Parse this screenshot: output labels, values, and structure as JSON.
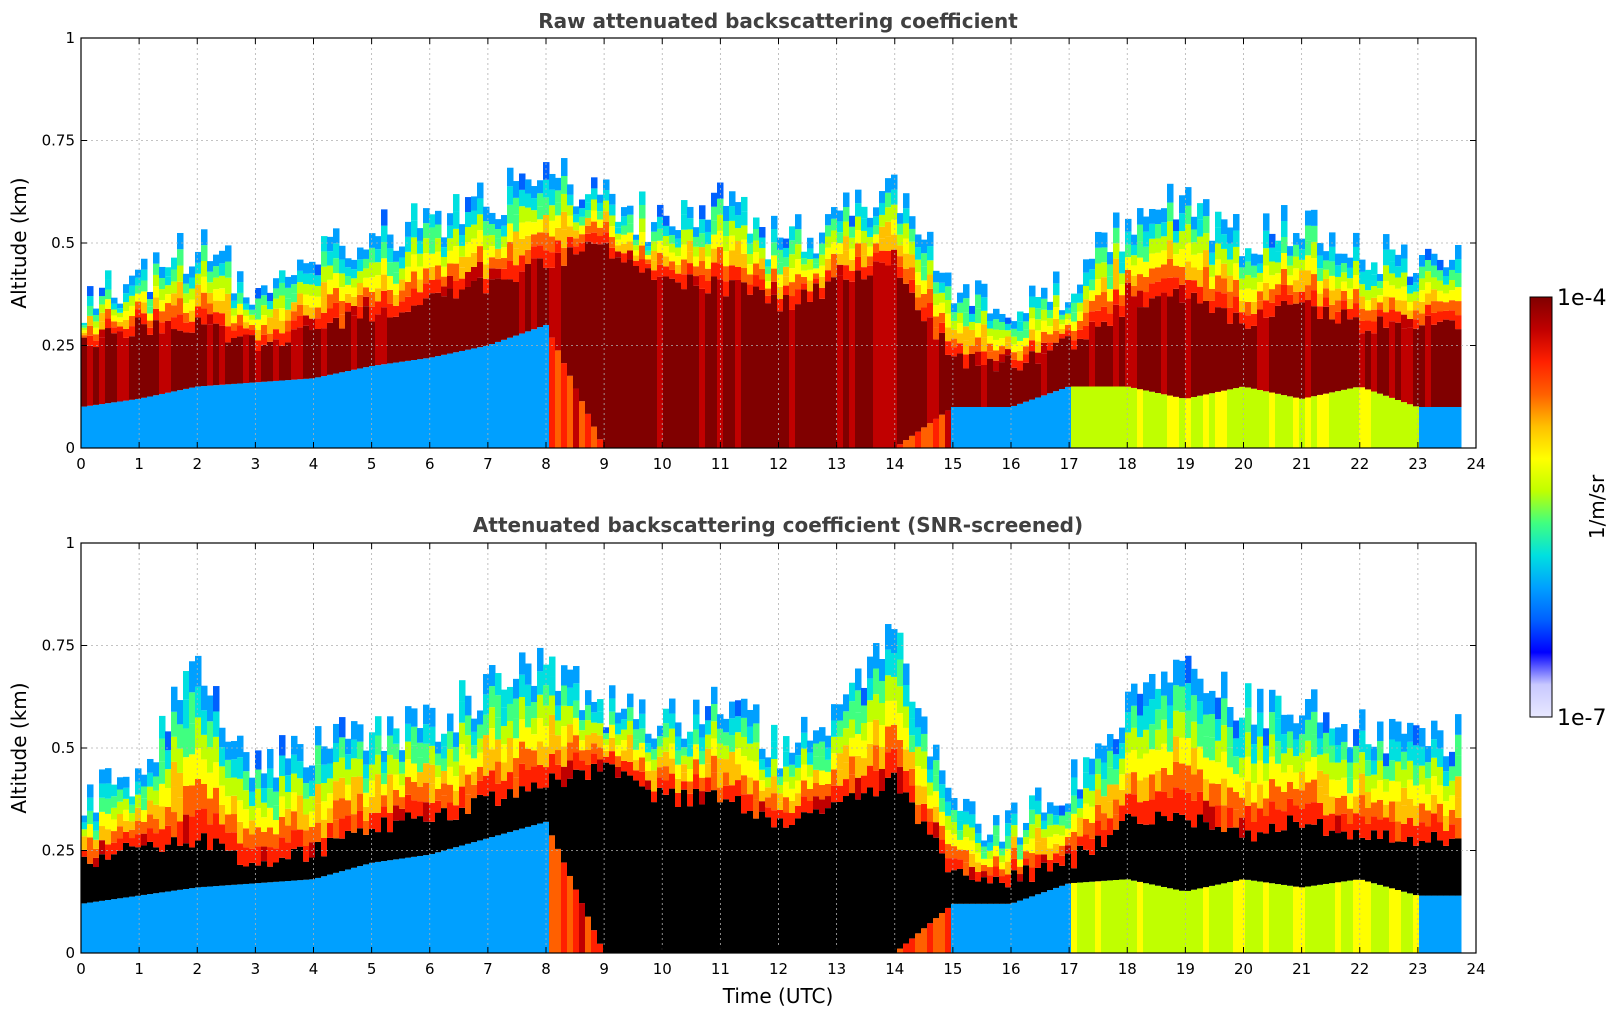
{
  "chart_data": [
    {
      "type": "heatmap",
      "title": "Raw attenuated backscattering coefficient",
      "xlabel": "",
      "ylabel": "Altitude (km)",
      "xlim": [
        0,
        24
      ],
      "ylim": [
        0,
        1
      ],
      "xticks": [
        "0",
        "1",
        "2",
        "3",
        "4",
        "5",
        "6",
        "7",
        "8",
        "9",
        "10",
        "11",
        "12",
        "13",
        "14",
        "15",
        "16",
        "17",
        "18",
        "19",
        "20",
        "21",
        "22",
        "23",
        "24"
      ],
      "yticks": [
        "0",
        "0.25",
        "0.5",
        "0.75",
        "1"
      ],
      "grid": true,
      "screened": false,
      "top_boundary_km": {
        "x": [
          0,
          1,
          2,
          3,
          4,
          5,
          6,
          7,
          8,
          9,
          10,
          11,
          12,
          13,
          14,
          15,
          16,
          17,
          18,
          19,
          20,
          21,
          22,
          23,
          23.8
        ],
        "y": [
          0.35,
          0.42,
          0.5,
          0.4,
          0.45,
          0.52,
          0.55,
          0.6,
          0.7,
          0.6,
          0.55,
          0.6,
          0.5,
          0.55,
          0.65,
          0.4,
          0.3,
          0.4,
          0.55,
          0.6,
          0.5,
          0.55,
          0.5,
          0.45,
          0.45
        ]
      },
      "dense_layer_km": {
        "x": [
          0,
          1,
          2,
          3,
          4,
          5,
          6,
          7,
          8,
          9,
          10,
          11,
          12,
          13,
          14,
          15,
          16,
          17,
          18,
          19,
          20,
          21,
          22,
          23,
          23.8
        ],
        "bottom": [
          0.1,
          0.12,
          0.15,
          0.16,
          0.17,
          0.2,
          0.22,
          0.25,
          0.3,
          0.0,
          0.0,
          0.0,
          0.0,
          0.0,
          0.0,
          0.1,
          0.1,
          0.15,
          0.15,
          0.12,
          0.15,
          0.12,
          0.15,
          0.1,
          0.1
        ],
        "top": [
          0.25,
          0.3,
          0.3,
          0.25,
          0.28,
          0.33,
          0.36,
          0.4,
          0.45,
          0.5,
          0.4,
          0.4,
          0.35,
          0.4,
          0.45,
          0.22,
          0.2,
          0.25,
          0.35,
          0.38,
          0.3,
          0.35,
          0.3,
          0.3,
          0.3
        ]
      }
    },
    {
      "type": "heatmap",
      "title": "Attenuated backscattering coefficient (SNR-screened)",
      "xlabel": "Time (UTC)",
      "ylabel": "Altitude (km)",
      "xlim": [
        0,
        24
      ],
      "ylim": [
        0,
        1
      ],
      "xticks": [
        "0",
        "1",
        "2",
        "3",
        "4",
        "5",
        "6",
        "7",
        "8",
        "9",
        "10",
        "11",
        "12",
        "13",
        "14",
        "15",
        "16",
        "17",
        "18",
        "19",
        "20",
        "21",
        "22",
        "23",
        "24"
      ],
      "yticks": [
        "0",
        "0.25",
        "0.5",
        "0.75",
        "1"
      ],
      "grid": true,
      "screened": true,
      "top_boundary_km": {
        "x": [
          0,
          1,
          2,
          3,
          4,
          5,
          6,
          7,
          8,
          9,
          10,
          11,
          12,
          13,
          14,
          15,
          16,
          17,
          18,
          19,
          20,
          21,
          22,
          23,
          23.8
        ],
        "y": [
          0.38,
          0.45,
          0.7,
          0.45,
          0.5,
          0.55,
          0.55,
          0.65,
          0.72,
          0.6,
          0.55,
          0.62,
          0.5,
          0.6,
          0.8,
          0.35,
          0.32,
          0.42,
          0.6,
          0.72,
          0.6,
          0.62,
          0.55,
          0.5,
          0.55
        ]
      },
      "dense_layer_km": {
        "x": [
          0,
          1,
          2,
          3,
          4,
          5,
          6,
          7,
          8,
          9,
          10,
          11,
          12,
          13,
          14,
          15,
          16,
          17,
          18,
          19,
          20,
          21,
          22,
          23,
          23.8
        ],
        "bottom": [
          0.12,
          0.14,
          0.16,
          0.17,
          0.18,
          0.22,
          0.24,
          0.28,
          0.32,
          0.0,
          0.0,
          0.0,
          0.0,
          0.0,
          0.0,
          0.12,
          0.12,
          0.17,
          0.18,
          0.15,
          0.18,
          0.16,
          0.18,
          0.14,
          0.14
        ],
        "top": [
          0.22,
          0.26,
          0.28,
          0.22,
          0.25,
          0.3,
          0.33,
          0.37,
          0.42,
          0.45,
          0.38,
          0.38,
          0.32,
          0.36,
          0.42,
          0.2,
          0.18,
          0.22,
          0.32,
          0.34,
          0.28,
          0.32,
          0.28,
          0.28,
          0.28
        ]
      }
    }
  ],
  "colorbar": {
    "max_label": "1e-4",
    "min_label": "1e-7",
    "unit_label": "1/m/sr",
    "colors": [
      "#e8e8ff",
      "#c8c8ff",
      "#0000ff",
      "#0060ff",
      "#00a0ff",
      "#00e0e0",
      "#40ff80",
      "#c0ff00",
      "#ffff00",
      "#ffc000",
      "#ff6000",
      "#ff2000",
      "#c00000",
      "#800000"
    ]
  }
}
